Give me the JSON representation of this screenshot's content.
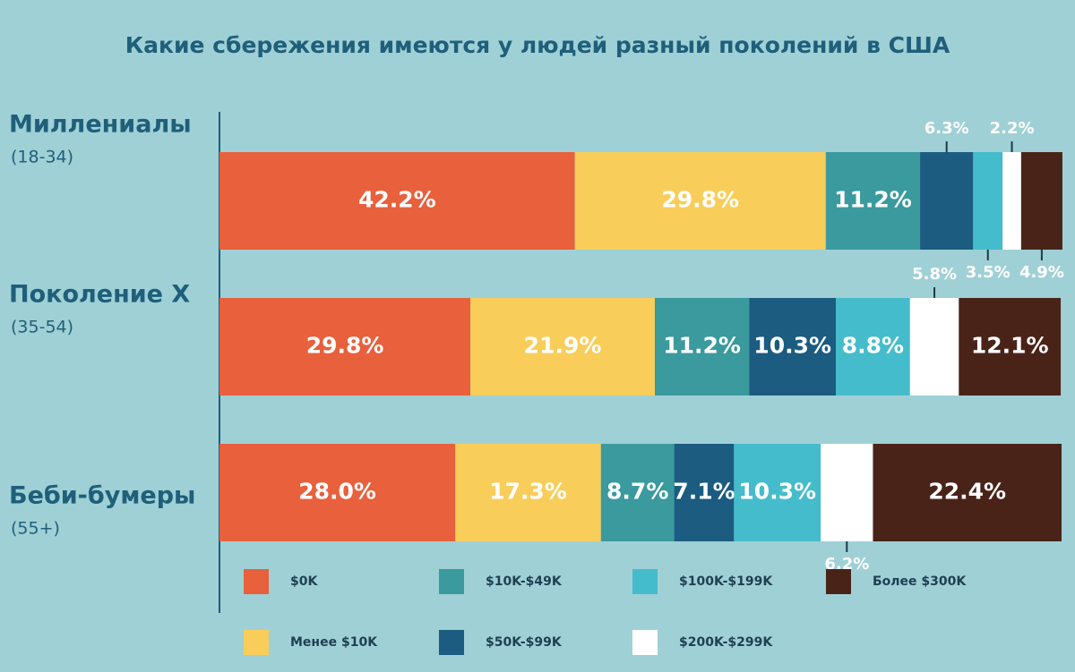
{
  "chart_data": {
    "type": "stacked-bar-100",
    "title": "Какие сбережения имеются у людей разный поколений в США",
    "categories": [
      "Миллениалы",
      "Поколение X",
      "Беби-бумеры"
    ],
    "age_labels": [
      "(18-34)",
      "(35-54)",
      "(55+)"
    ],
    "xlim": [
      0,
      100
    ],
    "series": [
      {
        "name": "$0K",
        "color": "#e8603c",
        "values": [
          42.2,
          29.8,
          28.0
        ],
        "value_labels": [
          "42.2%",
          "29.8%",
          "28.0%"
        ]
      },
      {
        "name": "Менее $10K",
        "color": "#f9cd5a",
        "values": [
          29.8,
          21.9,
          17.3
        ],
        "value_labels": [
          "29.8%",
          "21.9%",
          "17.3%"
        ]
      },
      {
        "name": "$10K-$49K",
        "color": "#3a9a9e",
        "values": [
          11.2,
          11.2,
          8.7
        ],
        "value_labels": [
          "11.2%",
          "11.2%",
          "8.7%"
        ]
      },
      {
        "name": "$50K-$99K",
        "color": "#1b5c80",
        "values": [
          6.3,
          10.3,
          7.1
        ],
        "value_labels": [
          "6.3%",
          "10.3%",
          "7.1%"
        ]
      },
      {
        "name": "$100K-$199K",
        "color": "#45bccb",
        "values": [
          3.5,
          8.8,
          10.3
        ],
        "value_labels": [
          "3.5%",
          "8.8%",
          "10.3%"
        ]
      },
      {
        "name": "$200K-$299K",
        "color": "#ffffff",
        "values": [
          2.2,
          5.8,
          6.2
        ],
        "value_labels": [
          "2.2%",
          "5.8%",
          "6.2%"
        ]
      },
      {
        "name": "Более $300K",
        "color": "#4a2318",
        "values": [
          4.9,
          12.1,
          22.4
        ],
        "value_labels": [
          "4.9%",
          "12.1%",
          "22.4%"
        ]
      }
    ]
  }
}
